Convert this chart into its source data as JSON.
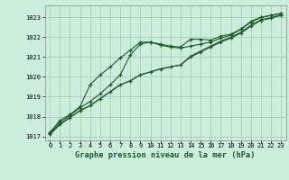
{
  "xlabel": "Graphe pression niveau de la mer (hPa)",
  "bg_color": "#cceedd",
  "grid_color": "#aaccbb",
  "line_color": "#1a5c28",
  "xlim": [
    -0.5,
    23.5
  ],
  "ylim": [
    1016.8,
    1023.6
  ],
  "yticks": [
    1017,
    1018,
    1019,
    1020,
    1021,
    1022,
    1023
  ],
  "xticks": [
    0,
    1,
    2,
    3,
    4,
    5,
    6,
    7,
    8,
    9,
    10,
    11,
    12,
    13,
    14,
    15,
    16,
    17,
    18,
    19,
    20,
    21,
    22,
    23
  ],
  "series1_x": [
    0,
    1,
    2,
    3,
    4,
    5,
    6,
    7,
    8,
    9,
    10,
    11,
    12,
    13,
    14,
    15,
    16,
    17,
    18,
    19,
    20,
    21,
    22,
    23
  ],
  "series1_y": [
    1017.2,
    1017.8,
    1018.1,
    1018.5,
    1019.6,
    1020.1,
    1020.5,
    1020.95,
    1021.35,
    1021.75,
    1021.75,
    1021.6,
    1021.5,
    1021.45,
    1021.55,
    1021.65,
    1021.75,
    1021.95,
    1022.1,
    1022.4,
    1022.75,
    1023.0,
    1023.1,
    1023.2
  ],
  "series2_x": [
    0,
    1,
    2,
    3,
    4,
    5,
    6,
    7,
    8,
    9,
    10,
    11,
    12,
    13,
    14,
    15,
    16,
    17,
    18,
    19,
    20,
    21,
    22,
    23
  ],
  "series2_y": [
    1017.15,
    1017.7,
    1018.05,
    1018.45,
    1018.75,
    1019.15,
    1019.6,
    1020.1,
    1021.1,
    1021.65,
    1021.75,
    1021.65,
    1021.55,
    1021.5,
    1021.9,
    1021.9,
    1021.85,
    1022.05,
    1022.15,
    1022.4,
    1022.8,
    1023.0,
    1023.1,
    1023.2
  ],
  "series3_x": [
    0,
    1,
    2,
    3,
    4,
    5,
    6,
    7,
    8,
    9,
    10,
    11,
    12,
    13,
    14,
    15,
    16,
    17,
    18,
    19,
    20,
    21,
    22,
    23
  ],
  "series3_y": [
    1017.1,
    1017.6,
    1017.95,
    1018.3,
    1018.55,
    1018.9,
    1019.25,
    1019.6,
    1019.8,
    1020.1,
    1020.25,
    1020.4,
    1020.5,
    1020.6,
    1021.0,
    1021.25,
    1021.5,
    1021.75,
    1021.95,
    1022.2,
    1022.55,
    1022.85,
    1022.95,
    1023.1
  ],
  "series4_x": [
    0,
    1,
    2,
    3,
    4,
    5,
    6,
    7,
    8,
    9,
    10,
    11,
    12,
    13,
    14,
    15,
    16,
    17,
    18,
    19,
    20,
    21,
    22,
    23
  ],
  "series4_y": [
    1017.1,
    1017.6,
    1017.95,
    1018.3,
    1018.55,
    1018.9,
    1019.25,
    1019.6,
    1019.8,
    1020.1,
    1020.25,
    1020.4,
    1020.5,
    1020.6,
    1021.05,
    1021.3,
    1021.55,
    1021.8,
    1022.0,
    1022.25,
    1022.6,
    1022.88,
    1022.98,
    1023.13
  ]
}
